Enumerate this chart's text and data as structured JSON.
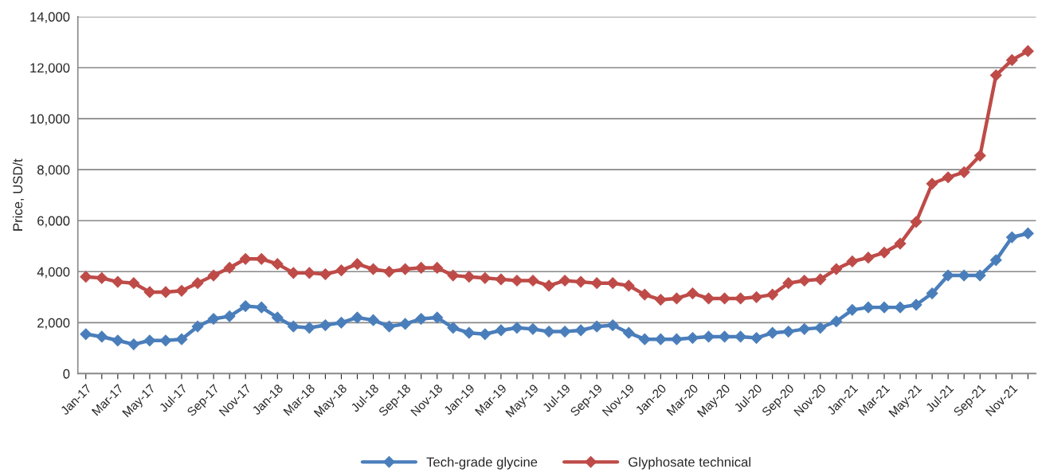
{
  "chart_data": {
    "type": "line",
    "ylabel": "Price, USD/t",
    "categories": [
      "Jan-17",
      null,
      "Mar-17",
      null,
      "May-17",
      null,
      "Jul-17",
      null,
      "Sep-17",
      null,
      "Nov-17",
      null,
      "Jan-18",
      null,
      "Mar-18",
      null,
      "May-18",
      null,
      "Jul-18",
      null,
      "Sep-18",
      null,
      "Nov-18",
      null,
      "Jan-19",
      null,
      "Mar-19",
      null,
      "May-19",
      null,
      "Jul-19",
      null,
      "Sep-19",
      null,
      "Nov-19",
      null,
      "Jan-20",
      null,
      "Mar-20",
      null,
      "May-20",
      null,
      "Jul-20",
      null,
      "Sep-20",
      null,
      "Nov-20",
      null,
      "Jan-21",
      null,
      "Mar-21",
      null,
      "May-21",
      null,
      "Jul-21",
      null,
      "Sep-21",
      null,
      "Nov-21",
      null
    ],
    "series": [
      {
        "name": "Tech-grade glycine",
        "color": "#4a7ebb",
        "values": [
          1550,
          1450,
          1300,
          1150,
          1300,
          1300,
          1350,
          1850,
          2150,
          2250,
          2650,
          2600,
          2200,
          1850,
          1800,
          1900,
          2000,
          2200,
          2100,
          1850,
          1950,
          2150,
          2200,
          1800,
          1600,
          1550,
          1700,
          1800,
          1750,
          1650,
          1650,
          1700,
          1850,
          1900,
          1600,
          1350,
          1350,
          1350,
          1400,
          1450,
          1450,
          1450,
          1400,
          1600,
          1650,
          1750,
          1800,
          2050,
          2500,
          2600,
          2600,
          2600,
          2700,
          3150,
          3850,
          3850,
          3850,
          4450,
          5350,
          5500
        ]
      },
      {
        "name": "Glyphosate technical",
        "color": "#be4b48",
        "values": [
          3800,
          3750,
          3600,
          3550,
          3200,
          3200,
          3250,
          3550,
          3850,
          4150,
          4500,
          4500,
          4300,
          3950,
          3950,
          3900,
          4050,
          4300,
          4100,
          4000,
          4100,
          4150,
          4150,
          3850,
          3800,
          3750,
          3700,
          3650,
          3650,
          3450,
          3650,
          3600,
          3550,
          3550,
          3450,
          3100,
          2900,
          2950,
          3150,
          2950,
          2950,
          2950,
          3000,
          3100,
          3550,
          3650,
          3700,
          4100,
          4400,
          4550,
          4750,
          5100,
          5950,
          7450,
          7700,
          7900,
          8550,
          11700,
          12300,
          12650
        ]
      }
    ],
    "ylim": [
      0,
      14000
    ],
    "yticks": [
      {
        "value": 0,
        "label": "0"
      },
      {
        "value": 2000,
        "label": "2,000"
      },
      {
        "value": 4000,
        "label": "4,000"
      },
      {
        "value": 6000,
        "label": "6,000"
      },
      {
        "value": 8000,
        "label": "8,000"
      },
      {
        "value": 10000,
        "label": "10,000"
      },
      {
        "value": 12000,
        "label": "12,000"
      },
      {
        "value": 14000,
        "label": "14,000"
      }
    ],
    "grid": "y",
    "legend": "bottom",
    "marker": "diamond",
    "line_style": "solid"
  }
}
